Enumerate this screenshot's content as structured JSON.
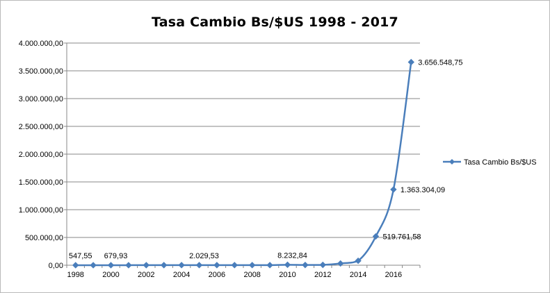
{
  "chart_data": {
    "type": "line",
    "title": "Tasa Cambio Bs/$US 1998 - 2017",
    "xlabel": "",
    "ylabel": "",
    "ylim": [
      0,
      4000000
    ],
    "y_ticks": [
      0,
      500000,
      1000000,
      1500000,
      2000000,
      2500000,
      3000000,
      3500000,
      4000000
    ],
    "y_tick_labels": [
      "0,00",
      "500.000,00",
      "1.000.000,00",
      "1.500.000,00",
      "2.000.000,00",
      "2.500.000,00",
      "3.000.000,00",
      "3.500.000,00",
      "4.000.000,00"
    ],
    "x_tick_labels": [
      "1998",
      "2000",
      "2002",
      "2004",
      "2006",
      "2008",
      "2010",
      "2012",
      "2014",
      "2016"
    ],
    "x": [
      1998,
      1999,
      2000,
      2001,
      2002,
      2003,
      2004,
      2005,
      2006,
      2007,
      2008,
      2009,
      2010,
      2011,
      2012,
      2013,
      2014,
      2015,
      2016,
      2017
    ],
    "series": [
      {
        "name": "Tasa Cambio Bs/$US",
        "color": "#4a7ebb",
        "values": [
          547.55,
          606,
          679.93,
          724,
          1161,
          1608,
          1915,
          2029.53,
          2147,
          2147,
          2147,
          2147,
          8232.84,
          4300,
          6300,
          32000,
          80000,
          519761.58,
          1363304.09,
          3656548.75
        ]
      }
    ],
    "data_labels": [
      {
        "index": 0,
        "text": "547,55"
      },
      {
        "index": 2,
        "text": "679,93"
      },
      {
        "index": 7,
        "text": "2.029,53"
      },
      {
        "index": 12,
        "text": "8.232,84"
      },
      {
        "index": 17,
        "text": "519.761,58"
      },
      {
        "index": 18,
        "text": "1.363.304,09"
      },
      {
        "index": 19,
        "text": "3.656.548,75"
      }
    ],
    "grid": true,
    "legend_position": "right"
  }
}
